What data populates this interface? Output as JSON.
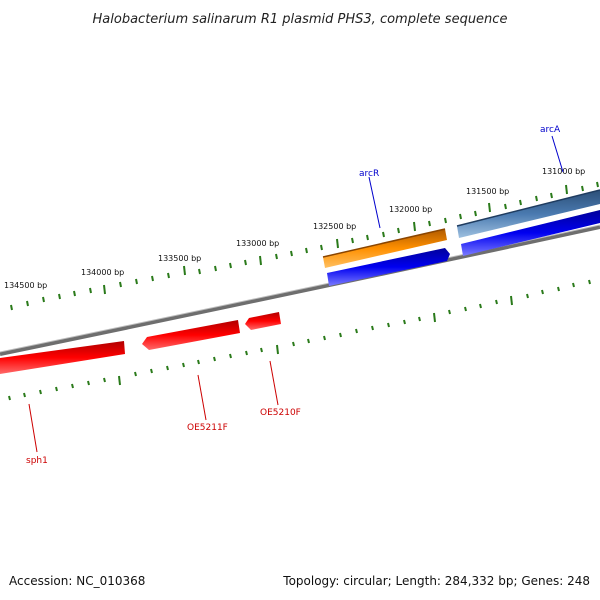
{
  "title": "Halobacterium salinarum R1 plasmid PHS3, complete sequence",
  "footer": {
    "accession": "Accession: NC_010368",
    "topology": "Topology: circular; Length: 284,332 bp; Genes: 248"
  },
  "ruler_labels": [
    "134500 bp",
    "134000 bp",
    "133500 bp",
    "133000 bp",
    "132500 bp",
    "132000 bp",
    "131500 bp",
    "131000 bp"
  ],
  "gene_labels": [
    {
      "name": "arcA",
      "color": "#0000cc"
    },
    {
      "name": "arcR",
      "color": "#0000cc"
    },
    {
      "name": "sph1",
      "color": "#cc0000"
    },
    {
      "name": "OE5211F",
      "color": "#cc0000"
    },
    {
      "name": "OE5210F",
      "color": "#cc0000"
    }
  ],
  "colors": {
    "backbone": "#7a7a7a",
    "ticks": "#2a7a1a",
    "red_gene": "#ff0000",
    "blue_gene": "#0000ee",
    "orange_gene": "#ff8c00",
    "steelblue_gene": "#4a7ab0"
  }
}
